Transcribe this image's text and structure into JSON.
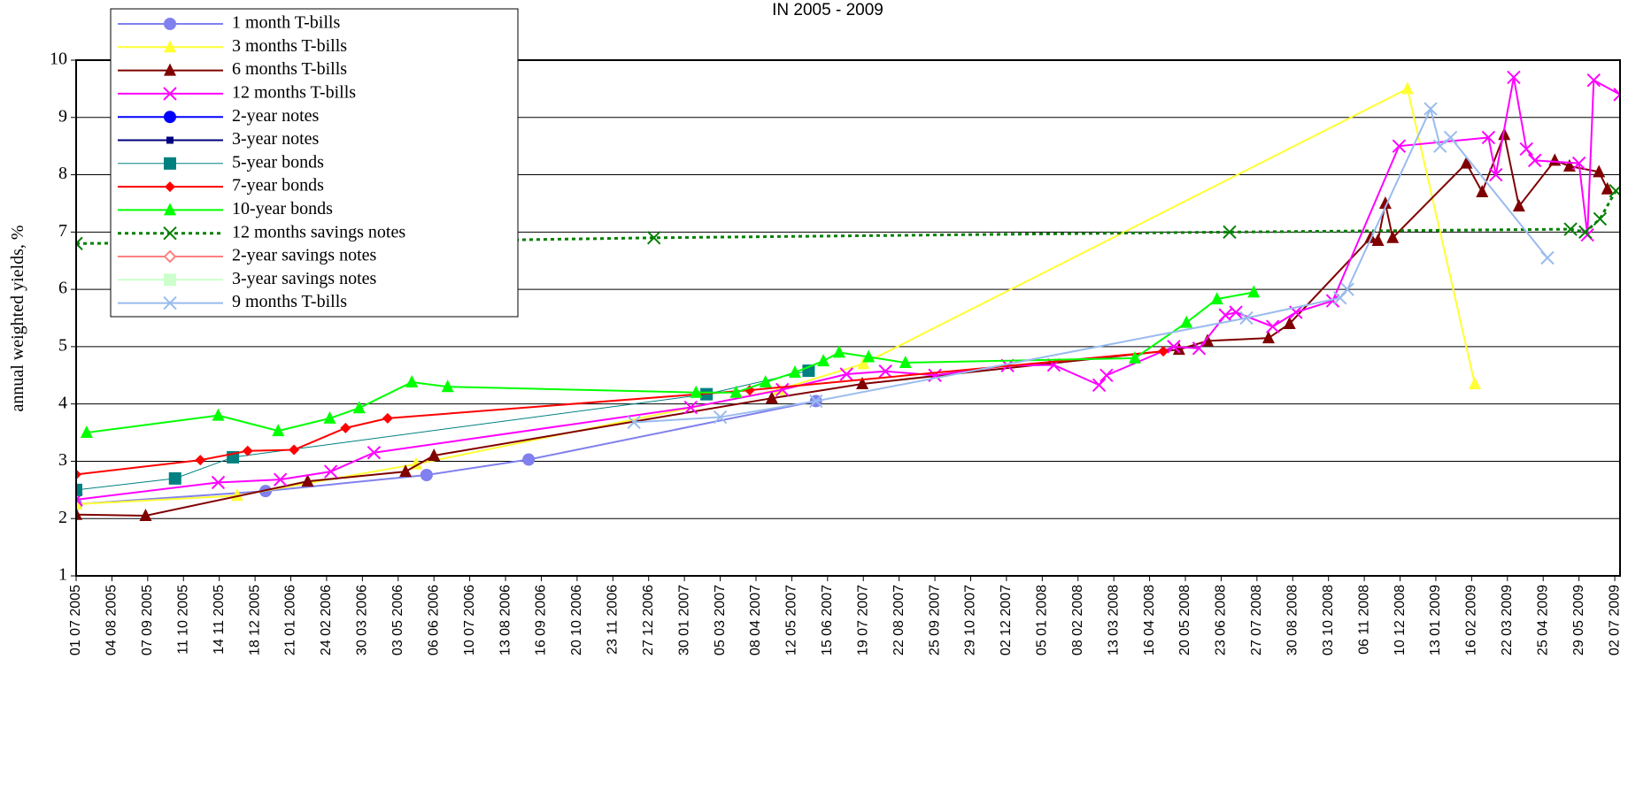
{
  "chart_data": {
    "type": "line",
    "title": "IN 2005 - 2009",
    "y_label": "annual weighted yields, %",
    "ylim": [
      1,
      10
    ],
    "yticks": [
      1,
      2,
      3,
      4,
      5,
      6,
      7,
      8,
      9,
      10
    ],
    "grid": true,
    "xlim": [
      "2005-07-01",
      "2009-07-07"
    ],
    "xticks": [
      {
        "value": "2005-07-01",
        "label": "01 07 2005"
      },
      {
        "value": "2005-08-04",
        "label": "04 08 2005"
      },
      {
        "value": "2005-09-07",
        "label": "07 09 2005"
      },
      {
        "value": "2005-10-11",
        "label": "11 10 2005"
      },
      {
        "value": "2005-11-14",
        "label": "14 11 2005"
      },
      {
        "value": "2005-12-18",
        "label": "18 12 2005"
      },
      {
        "value": "2006-01-21",
        "label": "21 01 2006"
      },
      {
        "value": "2006-02-24",
        "label": "24 02 2006"
      },
      {
        "value": "2006-03-30",
        "label": "30 03 2006"
      },
      {
        "value": "2006-05-03",
        "label": "03 05 2006"
      },
      {
        "value": "2006-06-06",
        "label": "06 06 2006"
      },
      {
        "value": "2006-07-10",
        "label": "10 07 2006"
      },
      {
        "value": "2006-08-13",
        "label": "13 08 2006"
      },
      {
        "value": "2006-09-16",
        "label": "16 09 2006"
      },
      {
        "value": "2006-10-20",
        "label": "20 10 2006"
      },
      {
        "value": "2006-11-23",
        "label": "23 11 2006"
      },
      {
        "value": "2006-12-27",
        "label": "27 12 2006"
      },
      {
        "value": "2007-01-30",
        "label": "30 01 2007"
      },
      {
        "value": "2007-03-05",
        "label": "05 03 2007"
      },
      {
        "value": "2007-04-08",
        "label": "08 04 2007"
      },
      {
        "value": "2007-05-12",
        "label": "12 05 2007"
      },
      {
        "value": "2007-06-15",
        "label": "15 06 2007"
      },
      {
        "value": "2007-07-19",
        "label": "19 07 2007"
      },
      {
        "value": "2007-08-22",
        "label": "22 08 2007"
      },
      {
        "value": "2007-09-25",
        "label": "25 09 2007"
      },
      {
        "value": "2007-10-29",
        "label": "29 10 2007"
      },
      {
        "value": "2007-12-02",
        "label": "02 12 2007"
      },
      {
        "value": "2008-01-05",
        "label": "05 01 2008"
      },
      {
        "value": "2008-02-08",
        "label": "08 02 2008"
      },
      {
        "value": "2008-03-13",
        "label": "13 03 2008"
      },
      {
        "value": "2008-04-16",
        "label": "16 04 2008"
      },
      {
        "value": "2008-05-20",
        "label": "20 05 2008"
      },
      {
        "value": "2008-06-23",
        "label": "23 06 2008"
      },
      {
        "value": "2008-07-27",
        "label": "27 07 2008"
      },
      {
        "value": "2008-08-30",
        "label": "30 08 2008"
      },
      {
        "value": "2008-10-03",
        "label": "03 10 2008"
      },
      {
        "value": "2008-11-06",
        "label": "06 11 2008"
      },
      {
        "value": "2008-12-10",
        "label": "10 12 2008"
      },
      {
        "value": "2009-01-13",
        "label": "13 01 2009"
      },
      {
        "value": "2009-02-16",
        "label": "16 02 2009"
      },
      {
        "value": "2009-03-22",
        "label": "22 03 2009"
      },
      {
        "value": "2009-04-25",
        "label": "25 04 2009"
      },
      {
        "value": "2009-05-29",
        "label": "29 05 2009"
      },
      {
        "value": "2009-07-02",
        "label": "02 07 2009"
      }
    ],
    "series": [
      {
        "name": "1 month T-bills",
        "color": "#8080ee",
        "marker": "circle",
        "x": [
          "2005-07-01",
          "2005-12-28",
          "2006-05-30",
          "2006-09-04",
          "2007-06-04"
        ],
        "values": [
          2.25,
          2.48,
          2.76,
          3.03,
          4.05
        ]
      },
      {
        "name": "3 months T-bills",
        "color": "#ffff33",
        "marker": "triangle",
        "x": [
          "2005-07-01",
          "2005-12-01",
          "2006-05-20",
          "2007-04-30",
          "2007-07-19",
          "2008-12-17",
          "2009-02-19"
        ],
        "values": [
          2.25,
          2.4,
          2.95,
          4.25,
          4.7,
          9.5,
          4.35
        ]
      },
      {
        "name": "6 months T-bills",
        "color": "#800000",
        "marker": "triangle",
        "x": [
          "2005-07-01",
          "2005-09-05",
          "2006-02-06",
          "2006-05-10",
          "2006-06-06",
          "2007-04-23",
          "2007-07-18",
          "2008-05-14",
          "2008-06-10",
          "2008-08-07",
          "2008-08-27",
          "2008-11-12",
          "2008-11-19",
          "2008-11-26",
          "2008-12-03",
          "2009-02-11",
          "2009-02-26",
          "2009-03-19",
          "2009-04-02",
          "2009-05-06",
          "2009-05-20",
          "2009-06-17",
          "2009-06-25"
        ],
        "values": [
          2.07,
          2.05,
          2.65,
          2.82,
          3.1,
          4.1,
          4.35,
          4.95,
          5.1,
          5.15,
          5.4,
          6.9,
          6.85,
          7.5,
          6.9,
          8.2,
          7.7,
          8.7,
          7.45,
          8.25,
          8.15,
          8.05,
          7.75
        ]
      },
      {
        "name": "12  months T-bills",
        "color": "#ff00ff",
        "marker": "x",
        "x": [
          "2005-07-01",
          "2005-11-13",
          "2006-01-11",
          "2006-02-28",
          "2006-04-10",
          "2007-02-05",
          "2007-05-03",
          "2007-07-03",
          "2007-08-09",
          "2007-09-25",
          "2007-12-03",
          "2008-01-16",
          "2008-02-28",
          "2008-03-06",
          "2008-05-09",
          "2008-06-02",
          "2008-06-27",
          "2008-07-07",
          "2008-08-11",
          "2008-09-02",
          "2008-10-07",
          "2008-12-09",
          "2009-03-04",
          "2009-03-11",
          "2009-03-28",
          "2009-04-09",
          "2009-04-17",
          "2009-05-29",
          "2009-06-06",
          "2009-06-12",
          "2009-07-07"
        ],
        "values": [
          2.33,
          2.63,
          2.68,
          2.82,
          3.15,
          3.94,
          4.25,
          4.52,
          4.57,
          4.5,
          4.67,
          4.68,
          4.33,
          4.5,
          5.0,
          4.97,
          5.55,
          5.6,
          5.35,
          5.6,
          5.8,
          8.5,
          8.65,
          8.0,
          9.7,
          8.45,
          8.25,
          8.2,
          6.95,
          9.65,
          9.4
        ]
      },
      {
        "name": "2-year notes",
        "color": "#0000ff",
        "marker": "circle",
        "x": [],
        "values": []
      },
      {
        "name": "3-year notes",
        "color": "#000080",
        "marker": "smallsquare",
        "x": [],
        "values": []
      },
      {
        "name": "5-year bonds",
        "color": "#008080",
        "marker": "square",
        "thin": true,
        "x": [
          "2005-07-01",
          "2005-10-03",
          "2005-11-27",
          "2007-02-20",
          "2007-05-28"
        ],
        "values": [
          2.5,
          2.7,
          3.07,
          4.17,
          4.58
        ]
      },
      {
        "name": "7-year bonds",
        "color": "#ff0000",
        "marker": "diamond",
        "x": [
          "2005-07-01",
          "2005-10-27",
          "2005-12-11",
          "2006-01-24",
          "2006-03-14",
          "2006-04-23",
          "2007-04-02",
          "2008-04-29"
        ],
        "values": [
          2.77,
          3.02,
          3.18,
          3.2,
          3.58,
          3.75,
          4.24,
          4.92
        ]
      },
      {
        "name": "10-year bonds",
        "color": "#00ff00",
        "marker": "triangle",
        "x": [
          "2005-07-11",
          "2005-11-13",
          "2006-01-09",
          "2006-02-27",
          "2006-03-27",
          "2006-05-16",
          "2006-06-19",
          "2007-02-10",
          "2007-03-20",
          "2007-04-17",
          "2007-05-15",
          "2007-06-11",
          "2007-06-26",
          "2007-07-24",
          "2007-08-28",
          "2008-04-02",
          "2008-05-21",
          "2008-06-19",
          "2008-07-24"
        ],
        "values": [
          3.5,
          3.8,
          3.53,
          3.75,
          3.93,
          4.38,
          4.3,
          4.2,
          4.2,
          4.38,
          4.55,
          4.75,
          4.9,
          4.82,
          4.72,
          4.8,
          5.42,
          5.83,
          5.95
        ]
      },
      {
        "name": "12 months savings notes",
        "color": "#008000",
        "marker": "x",
        "dashed": true,
        "x": [
          "2005-07-01",
          "2006-07-01",
          "2007-01-01",
          "2008-07-01",
          "2009-05-21",
          "2009-06-04",
          "2009-06-18",
          "2009-07-03"
        ],
        "values": [
          6.8,
          6.85,
          6.9,
          7.0,
          7.05,
          7.0,
          7.23,
          7.72
        ]
      },
      {
        "name": "2-year savings notes",
        "color": "#ff8080",
        "marker": "hollowdiamond",
        "x": [],
        "values": []
      },
      {
        "name": "3-year savings notes",
        "color": "#ccffcc",
        "marker": "square",
        "x": [],
        "values": []
      },
      {
        "name": "9 months T-bills",
        "color": "#99bbee",
        "marker": "x",
        "x": [
          "2006-12-13",
          "2007-03-05",
          "2007-06-04",
          "2008-07-17",
          "2008-10-14",
          "2008-10-21",
          "2009-01-08",
          "2009-01-17",
          "2009-01-27",
          "2009-04-29"
        ],
        "values": [
          3.68,
          3.77,
          4.05,
          5.5,
          5.85,
          6.0,
          9.15,
          8.5,
          8.65,
          6.55
        ]
      }
    ]
  }
}
